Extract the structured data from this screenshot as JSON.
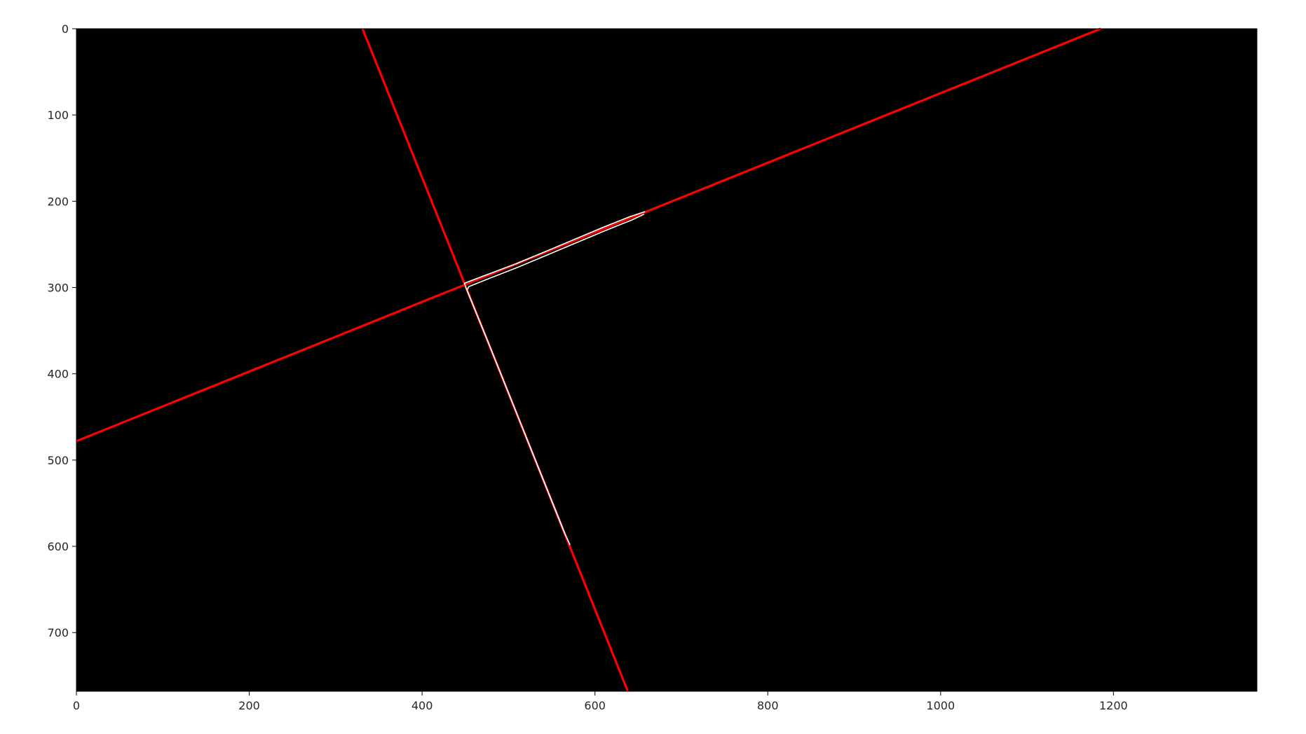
{
  "chart_data": {
    "type": "line",
    "title": "",
    "xlabel": "",
    "ylabel": "",
    "xlim": [
      0,
      1366
    ],
    "ylim": [
      768,
      0
    ],
    "y_inverted": true,
    "grid": false,
    "background_color": "#000000",
    "x_ticks": [
      {
        "value": 0,
        "label": "0"
      },
      {
        "value": 200,
        "label": "200"
      },
      {
        "value": 400,
        "label": "400"
      },
      {
        "value": 600,
        "label": "600"
      },
      {
        "value": 800,
        "label": "800"
      },
      {
        "value": 1000,
        "label": "1000"
      },
      {
        "value": 1200,
        "label": "1200"
      }
    ],
    "y_ticks": [
      {
        "value": 0,
        "label": "0"
      },
      {
        "value": 100,
        "label": "100"
      },
      {
        "value": 200,
        "label": "200"
      },
      {
        "value": 300,
        "label": "300"
      },
      {
        "value": 400,
        "label": "400"
      },
      {
        "value": 500,
        "label": "500"
      },
      {
        "value": 600,
        "label": "600"
      },
      {
        "value": 700,
        "label": "700"
      }
    ],
    "series": [
      {
        "color": "#ff0000",
        "kind": "red-line",
        "x": [
          0,
          1185
        ],
        "y": [
          478,
          0
        ]
      },
      {
        "color": "#ff0000",
        "kind": "red-line",
        "x": [
          331,
          638
        ],
        "y": [
          0,
          768
        ]
      },
      {
        "color": "#ffffff",
        "kind": "edge-contour",
        "x": [
          658,
          640,
          610,
          560,
          510,
          470,
          449,
          451,
          475,
          505,
          535,
          565,
          571,
          566,
          536,
          506,
          476,
          452,
          454,
          474,
          512,
          562,
          612,
          642,
          657
        ],
        "y": [
          212,
          218,
          230,
          251,
          272,
          287,
          295,
          301,
          360,
          435,
          510,
          585,
          598,
          587,
          512,
          437,
          362,
          303,
          299,
          291,
          276,
          255,
          234,
          222,
          215
        ]
      }
    ]
  }
}
